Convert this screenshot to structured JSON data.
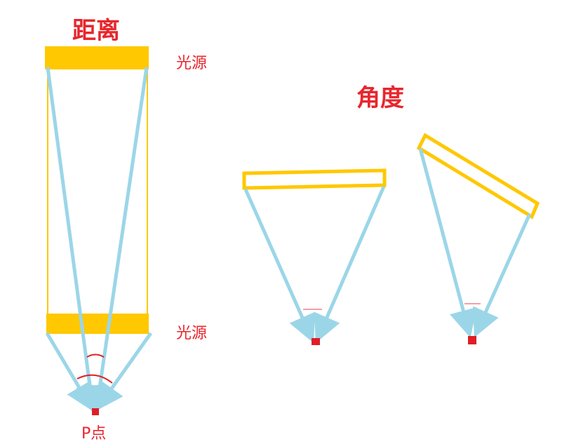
{
  "labels": {
    "distance_title": "距离",
    "angle_title": "角度",
    "light_source_top": "光源",
    "light_source_bottom": "光源",
    "point_p": "P点"
  },
  "colors": {
    "text": "#e8262d",
    "light": "#ffc800",
    "ray": "#9bd6e8",
    "point": "#e01e26",
    "mark": "#f2a0a8"
  }
}
